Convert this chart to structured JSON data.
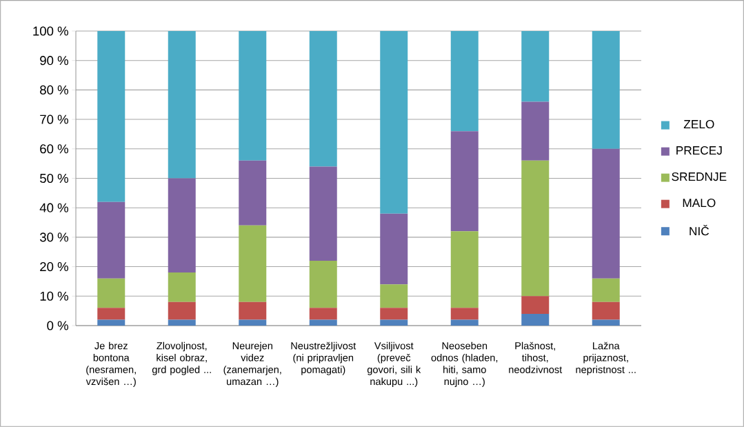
{
  "chart_data": {
    "type": "bar",
    "stacked": true,
    "categories": [
      "Je brez bontona (nesramen, vzvišen …)",
      "Zlovoljnost, kisel obraz, grd pogled ...",
      "Neurejen videz (zanemarjen, umazan …)",
      "Neustrežljivost (ni pripravljen pomagati)",
      "Vsiljivost (preveč govori, sili k nakupu ...)",
      "Neoseben odnos (hladen, hiti, samo nujno …)",
      "Plašnost, tihost, neodzivnost",
      "Lažna prijaznost, nepristnost ..."
    ],
    "series": [
      {
        "name": "NIČ",
        "color": "#4f81bd",
        "values": [
          2,
          2,
          2,
          2,
          2,
          2,
          4,
          2
        ]
      },
      {
        "name": "MALO",
        "color": "#c0504d",
        "values": [
          4,
          6,
          6,
          4,
          4,
          4,
          6,
          6
        ]
      },
      {
        "name": "SREDNJE",
        "color": "#9bbb59",
        "values": [
          10,
          10,
          26,
          16,
          8,
          26,
          46,
          8
        ]
      },
      {
        "name": "PRECEJ",
        "color": "#8064a2",
        "values": [
          26,
          32,
          22,
          32,
          24,
          34,
          20,
          44
        ]
      },
      {
        "name": "ZELO",
        "color": "#4bacc6",
        "values": [
          58,
          50,
          44,
          46,
          62,
          34,
          24,
          40
        ]
      }
    ],
    "ylim": [
      0,
      100
    ],
    "yticks": [
      {
        "value": 0,
        "label": "0 %"
      },
      {
        "value": 10,
        "label": "10 %"
      },
      {
        "value": 20,
        "label": "20 %"
      },
      {
        "value": 30,
        "label": "30 %"
      },
      {
        "value": 40,
        "label": "40 %"
      },
      {
        "value": 50,
        "label": "50 %"
      },
      {
        "value": 60,
        "label": "60 %"
      },
      {
        "value": 70,
        "label": "70 %"
      },
      {
        "value": 80,
        "label": "80 %"
      },
      {
        "value": 90,
        "label": "90 %"
      },
      {
        "value": 100,
        "label": "100 %"
      }
    ],
    "grid": "y",
    "legend": "right"
  }
}
